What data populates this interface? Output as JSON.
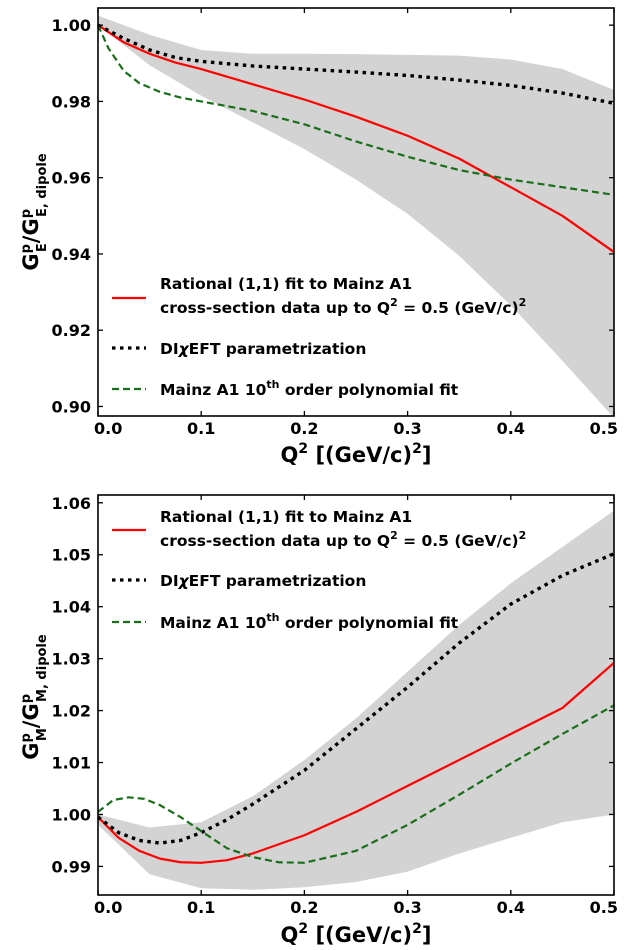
{
  "chart_data": [
    {
      "type": "line",
      "xlabel": "Q² [(GeV/c)²]",
      "xlabel_parts": {
        "main": "Q",
        "sup": "2",
        "rest1": " [(GeV/c)",
        "sup2": "2",
        "rest2": "]"
      },
      "ylabel": "G^p_E / G^p_E,dipole",
      "ylabel_parts": {
        "a": "G",
        "a_sup": "p",
        "a_sub": "E",
        "sep": "/",
        "b": "G",
        "b_sup": "p",
        "b_sub": "E, dipole"
      },
      "xlim": [
        0.0,
        0.5
      ],
      "ylim": [
        0.8975,
        1.0045
      ],
      "xticks": [
        0.0,
        0.1,
        0.2,
        0.3,
        0.4,
        0.5
      ],
      "xtick_labels": [
        "0.0",
        "0.1",
        "0.2",
        "0.3",
        "0.4",
        "0.5"
      ],
      "yticks": [
        0.9,
        0.92,
        0.94,
        0.96,
        0.98,
        1.0
      ],
      "ytick_labels": [
        "0.90",
        "0.92",
        "0.94",
        "0.96",
        "0.98",
        "1.00"
      ],
      "grid": false,
      "legend_position": "lower-left",
      "band": {
        "x": [
          0.0,
          0.05,
          0.1,
          0.15,
          0.2,
          0.25,
          0.3,
          0.35,
          0.4,
          0.45,
          0.5
        ],
        "upper": [
          1.0025,
          0.9975,
          0.9935,
          0.9925,
          0.9925,
          0.9924,
          0.9922,
          0.992,
          0.991,
          0.9885,
          0.983
        ],
        "lower": [
          1.0,
          0.9895,
          0.9815,
          0.9745,
          0.9675,
          0.9595,
          0.9505,
          0.9395,
          0.9265,
          0.912,
          0.897
        ],
        "color": "#d3d3d3"
      },
      "series": [
        {
          "name": "Rational (1,1) fit to Mainz A1 cross-section data up to Q² = 0.5 (GeV/c)²",
          "color": "#ff0000",
          "style": "solid",
          "x": [
            0.0,
            0.025,
            0.05,
            0.075,
            0.1,
            0.15,
            0.2,
            0.25,
            0.3,
            0.35,
            0.4,
            0.45,
            0.5
          ],
          "y": [
            1.0,
            0.9955,
            0.9925,
            0.9902,
            0.9885,
            0.9845,
            0.9805,
            0.976,
            0.971,
            0.965,
            0.9575,
            0.95,
            0.9405
          ]
        },
        {
          "name": "DIχEFT parametrization",
          "color": "#000000",
          "style": "dotted",
          "x": [
            0.0,
            0.025,
            0.05,
            0.075,
            0.1,
            0.15,
            0.2,
            0.25,
            0.3,
            0.35,
            0.4,
            0.45,
            0.5
          ],
          "y": [
            1.0,
            0.9965,
            0.9935,
            0.9915,
            0.9905,
            0.9893,
            0.9885,
            0.9877,
            0.9868,
            0.9856,
            0.9842,
            0.9822,
            0.9795
          ]
        },
        {
          "name": "Mainz A1 10th order polynomial fit",
          "color": "#1a6e1a",
          "style": "dashed",
          "x": [
            0.0,
            0.01,
            0.025,
            0.04,
            0.06,
            0.08,
            0.1,
            0.15,
            0.2,
            0.25,
            0.3,
            0.35,
            0.4,
            0.45,
            0.5
          ],
          "y": [
            1.0,
            0.994,
            0.988,
            0.9848,
            0.9825,
            0.981,
            0.98,
            0.9775,
            0.974,
            0.9695,
            0.9655,
            0.962,
            0.9595,
            0.9575,
            0.9555
          ]
        }
      ],
      "legend": [
        {
          "line1": "Rational (1,1) fit to Mainz A1",
          "line2_a": "cross-section data up to Q",
          "line2_sup": "2",
          "line2_b": " = 0.5 (GeV/c)",
          "line2_sup2": "2"
        },
        {
          "a": "DI",
          "chi": "χ",
          "b": "EFT parametrization"
        },
        {
          "a": "Mainz A1 10",
          "sup": "th",
          "b": " order polynomial fit"
        }
      ]
    },
    {
      "type": "line",
      "xlabel": "Q² [(GeV/c)²]",
      "xlabel_parts": {
        "main": "Q",
        "sup": "2",
        "rest1": " [(GeV/c)",
        "sup2": "2",
        "rest2": "]"
      },
      "ylabel": "G^p_M / G^p_M,dipole",
      "ylabel_parts": {
        "a": "G",
        "a_sup": "p",
        "a_sub": "M",
        "sep": "/",
        "b": "G",
        "b_sup": "p",
        "b_sub": "M, dipole"
      },
      "xlim": [
        0.0,
        0.5
      ],
      "ylim": [
        0.9845,
        1.0615
      ],
      "xticks": [
        0.0,
        0.1,
        0.2,
        0.3,
        0.4,
        0.5
      ],
      "xtick_labels": [
        "0.0",
        "0.1",
        "0.2",
        "0.3",
        "0.4",
        "0.5"
      ],
      "yticks": [
        0.99,
        1.0,
        1.01,
        1.02,
        1.03,
        1.04,
        1.05,
        1.06
      ],
      "ytick_labels": [
        "0.99",
        "1.00",
        "1.01",
        "1.02",
        "1.03",
        "1.04",
        "1.05",
        "1.06"
      ],
      "grid": false,
      "legend_position": "upper-left",
      "band": {
        "x": [
          0.0,
          0.05,
          0.1,
          0.15,
          0.2,
          0.25,
          0.3,
          0.35,
          0.4,
          0.45,
          0.5
        ],
        "upper": [
          1.0,
          0.9975,
          0.9985,
          1.0035,
          1.0105,
          1.0185,
          1.0275,
          1.0365,
          1.0445,
          1.0515,
          1.0585
        ],
        "lower": [
          0.998,
          0.9885,
          0.9858,
          0.9855,
          0.986,
          0.987,
          0.989,
          0.9925,
          0.9955,
          0.9985,
          1.0
        ],
        "color": "#d3d3d3"
      },
      "series": [
        {
          "name": "Rational (1,1) fit to Mainz A1 cross-section data up to Q² = 0.5 (GeV/c)²",
          "color": "#ff0000",
          "style": "solid",
          "x": [
            0.0,
            0.02,
            0.04,
            0.06,
            0.08,
            0.1,
            0.125,
            0.15,
            0.2,
            0.25,
            0.3,
            0.35,
            0.4,
            0.45,
            0.5
          ],
          "y": [
            0.9995,
            0.9955,
            0.993,
            0.9915,
            0.9908,
            0.9907,
            0.9912,
            0.9925,
            0.996,
            1.0005,
            1.0055,
            1.0105,
            1.0155,
            1.0205,
            1.0292
          ]
        },
        {
          "name": "DIχEFT parametrization",
          "color": "#000000",
          "style": "dotted",
          "x": [
            0.0,
            0.02,
            0.04,
            0.06,
            0.08,
            0.1,
            0.125,
            0.15,
            0.2,
            0.25,
            0.3,
            0.35,
            0.4,
            0.45,
            0.5
          ],
          "y": [
            0.9995,
            0.9965,
            0.995,
            0.9945,
            0.995,
            0.9965,
            0.999,
            1.002,
            1.0085,
            1.0165,
            1.0245,
            1.033,
            1.0405,
            1.046,
            1.0502
          ]
        },
        {
          "name": "Mainz A1 10th order polynomial fit",
          "color": "#1a6e1a",
          "style": "dashed",
          "x": [
            0.0,
            0.015,
            0.03,
            0.045,
            0.06,
            0.08,
            0.1,
            0.125,
            0.15,
            0.175,
            0.2,
            0.25,
            0.3,
            0.35,
            0.4,
            0.45,
            0.5
          ],
          "y": [
            1.0005,
            1.0028,
            1.0033,
            1.003,
            1.0018,
            0.9995,
            0.9968,
            0.9935,
            0.9918,
            0.9908,
            0.9907,
            0.993,
            0.998,
            1.0038,
            1.0098,
            1.0155,
            1.021
          ]
        }
      ],
      "legend": [
        {
          "line1": "Rational (1,1) fit to Mainz A1",
          "line2_a": "cross-section data up to Q",
          "line2_sup": "2",
          "line2_b": " = 0.5 (GeV/c)",
          "line2_sup2": "2"
        },
        {
          "a": "DI",
          "chi": "χ",
          "b": "EFT parametrization"
        },
        {
          "a": "Mainz A1 10",
          "sup": "th",
          "b": " order polynomial fit"
        }
      ]
    }
  ]
}
